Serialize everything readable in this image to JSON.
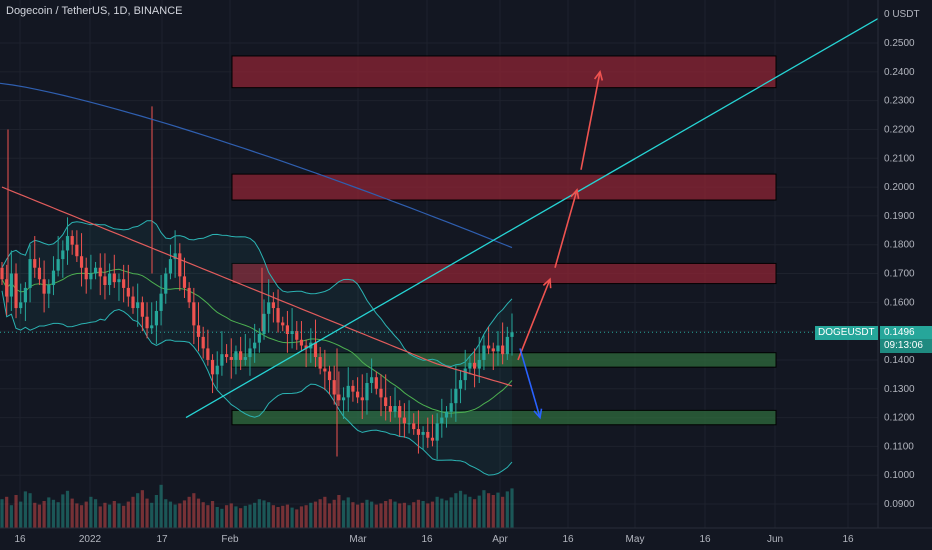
{
  "header": {
    "title": "Dogecoin / TetherUS, 1D, BINANCE"
  },
  "price_axis": {
    "currency_label": "0 USDT"
  },
  "last_price": {
    "ticker": "DOGEUSDT",
    "price": "0.1496",
    "countdown": "09:13:06"
  },
  "colors": {
    "background": "#131722",
    "grid": "#1e222d",
    "up": "#26a69a",
    "down": "#ef5350",
    "resistance_zone": "#8e2434",
    "support_zone": "#2f6b3c",
    "trendline": "#26d4d4",
    "arrow_up": "#ef5350",
    "arrow_down": "#2962ff",
    "ma_long": "#2f5fb0",
    "ma_mid": "#e25c5c",
    "bb_band": "#2bb3b3",
    "bb_basis": "#4caf50"
  },
  "chart_data": {
    "type": "candlestick",
    "symbol": "DOGEUSDT",
    "timeframe": "1D",
    "ylim": [
      0.085,
      0.26
    ],
    "y_ticks": [
      "0.2500",
      "0.2400",
      "0.2300",
      "0.2200",
      "0.2100",
      "0.2000",
      "0.1900",
      "0.1800",
      "0.1700",
      "0.1600",
      "0.1500",
      "0.1400",
      "0.1300",
      "0.1200",
      "0.1100",
      "0.1000",
      "0.0900"
    ],
    "x_ticks": [
      "16",
      "2022",
      "17",
      "Feb",
      "Mar",
      "16",
      "Apr",
      "16",
      "May",
      "16",
      "Jun",
      "16"
    ],
    "resistance_zones": [
      {
        "low": 0.2345,
        "high": 0.2455
      },
      {
        "low": 0.1955,
        "high": 0.2045
      },
      {
        "low": 0.1665,
        "high": 0.1735
      }
    ],
    "support_zones": [
      {
        "low": 0.1375,
        "high": 0.1425
      },
      {
        "low": 0.1175,
        "high": 0.1225
      }
    ],
    "closes": [
      0.168,
      0.162,
      0.17,
      0.158,
      0.16,
      0.165,
      0.175,
      0.172,
      0.168,
      0.163,
      0.166,
      0.171,
      0.175,
      0.178,
      0.183,
      0.18,
      0.176,
      0.172,
      0.168,
      0.17,
      0.172,
      0.169,
      0.166,
      0.17,
      0.167,
      0.168,
      0.165,
      0.162,
      0.158,
      0.16,
      0.155,
      0.151,
      0.152,
      0.157,
      0.163,
      0.17,
      0.175,
      0.177,
      0.169,
      0.165,
      0.16,
      0.152,
      0.148,
      0.144,
      0.14,
      0.135,
      0.138,
      0.142,
      0.141,
      0.14,
      0.143,
      0.14,
      0.141,
      0.144,
      0.146,
      0.149,
      0.156,
      0.16,
      0.158,
      0.153,
      0.152,
      0.149,
      0.15,
      0.147,
      0.145,
      0.144,
      0.146,
      0.141,
      0.137,
      0.136,
      0.133,
      0.128,
      0.126,
      0.127,
      0.131,
      0.129,
      0.127,
      0.126,
      0.132,
      0.134,
      0.13,
      0.127,
      0.124,
      0.122,
      0.124,
      0.12,
      0.118,
      0.118,
      0.116,
      0.114,
      0.115,
      0.113,
      0.112,
      0.118,
      0.12,
      0.122,
      0.125,
      0.13,
      0.133,
      0.137,
      0.139,
      0.137,
      0.14,
      0.145,
      0.144,
      0.143,
      0.145,
      0.142,
      0.148,
      0.1496
    ],
    "volumes": [
      0.48,
      0.52,
      0.38,
      0.55,
      0.44,
      0.61,
      0.58,
      0.42,
      0.39,
      0.45,
      0.51,
      0.47,
      0.43,
      0.56,
      0.62,
      0.49,
      0.41,
      0.38,
      0.44,
      0.52,
      0.48,
      0.36,
      0.42,
      0.39,
      0.45,
      0.41,
      0.37,
      0.44,
      0.52,
      0.58,
      0.63,
      0.49,
      0.42,
      0.55,
      0.72,
      0.48,
      0.44,
      0.39,
      0.41,
      0.46,
      0.52,
      0.58,
      0.49,
      0.43,
      0.38,
      0.45,
      0.35,
      0.32,
      0.38,
      0.41,
      0.36,
      0.33,
      0.37,
      0.39,
      0.42,
      0.48,
      0.46,
      0.43,
      0.38,
      0.35,
      0.37,
      0.39,
      0.34,
      0.31,
      0.36,
      0.38,
      0.42,
      0.44,
      0.48,
      0.52,
      0.41,
      0.47,
      0.55,
      0.46,
      0.51,
      0.43,
      0.39,
      0.42,
      0.47,
      0.44,
      0.39,
      0.41,
      0.45,
      0.48,
      0.44,
      0.41,
      0.42,
      0.38,
      0.43,
      0.47,
      0.45,
      0.41,
      0.44,
      0.52,
      0.49,
      0.46,
      0.51,
      0.58,
      0.62,
      0.56,
      0.52,
      0.48,
      0.54,
      0.63,
      0.58,
      0.55,
      0.59,
      0.52,
      0.61,
      0.66
    ]
  }
}
